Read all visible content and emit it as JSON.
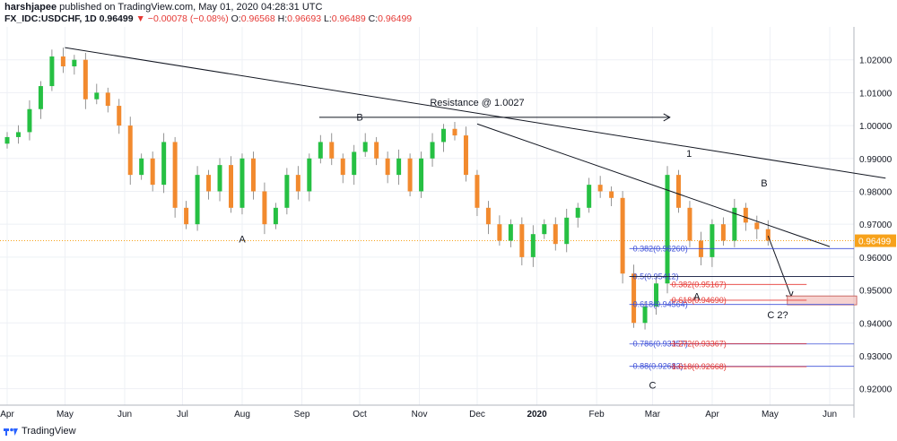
{
  "header": {
    "author": "harshjapee",
    "published": "published on TradingView.com, May 01, 2020 04:28:31 UTC",
    "symbol": "FX_IDC:USDCHF, 1D",
    "last": "0.96499",
    "change": "▼ −0.00078 (−0.08%)",
    "o_label": "O:",
    "o_val": "0.96568",
    "h_label": "H:",
    "h_val": "0.96693",
    "l_label": "L:",
    "l_val": "0.96489",
    "c_label": "C:",
    "c_val": "0.96499"
  },
  "footer": {
    "brand": "TradingView"
  },
  "colors": {
    "up": "#26c043",
    "down": "#f28a2e",
    "fib_blue": "#3f51d8",
    "fib_red": "#e53935",
    "line": "#131722",
    "grid": "#eef0f5",
    "price_tag": "#f7a21b"
  },
  "chart_data": {
    "type": "candlestick",
    "x_tick_labels": [
      "Apr",
      "May",
      "Jun",
      "Jul",
      "Aug",
      "Sep",
      "Oct",
      "Nov",
      "Dec",
      "2020",
      "Feb",
      "Mar",
      "Apr",
      "May",
      "Jun"
    ],
    "y_ticks": [
      0.92,
      0.93,
      0.94,
      0.95,
      0.96,
      0.97,
      0.98,
      0.99,
      1.0,
      1.01,
      1.02
    ],
    "y_tick_labels": [
      "0.92000",
      "0.93000",
      "0.94000",
      "0.95000",
      "0.96000",
      "0.97000",
      "0.98000",
      "0.99000",
      "1.00000",
      "1.01000",
      "1.02000"
    ],
    "ylim": [
      0.915,
      1.03
    ],
    "current_price": 0.96499,
    "current_price_label": "0.96499",
    "closes": [
      0.9965,
      0.998,
      1.005,
      1.012,
      1.021,
      1.018,
      1.02,
      1.008,
      1.01,
      1.006,
      1.0,
      0.985,
      0.99,
      0.982,
      0.995,
      0.975,
      0.97,
      0.985,
      0.98,
      0.988,
      0.975,
      0.99,
      0.98,
      0.97,
      0.975,
      0.985,
      0.98,
      0.99,
      0.995,
      0.99,
      0.985,
      0.992,
      0.995,
      0.99,
      0.985,
      0.99,
      0.98,
      0.99,
      0.995,
      0.999,
      0.997,
      0.985,
      0.975,
      0.97,
      0.965,
      0.97,
      0.96,
      0.967,
      0.97,
      0.964,
      0.972,
      0.975,
      0.982,
      0.98,
      0.978,
      0.955,
      0.94,
      0.945,
      0.952,
      0.985,
      0.975,
      0.965,
      0.96,
      0.97,
      0.965,
      0.975,
      0.9705,
      0.9685,
      0.965
    ],
    "annotations": [
      {
        "text": "B",
        "x": "2019-10-01",
        "y": 1.0015
      },
      {
        "text": "A",
        "x": "2019-08-01",
        "y": 0.9645
      },
      {
        "text": "Resistance @ 1.0027",
        "x": "2019-12-01",
        "y": 1.006
      },
      {
        "text": "1",
        "x": "2020-03-20",
        "y": 0.9905
      },
      {
        "text": "B",
        "x": "2020-04-28",
        "y": 0.9815
      },
      {
        "text": "A",
        "x": "2020-03-24",
        "y": 0.947
      },
      {
        "text": "C",
        "x": "2020-03-01",
        "y": 0.92
      },
      {
        "text": "C 2?",
        "x": "2020-05-05",
        "y": 0.9415
      }
    ],
    "fib_left": [
      {
        "level": "0.382",
        "value": "0.96260",
        "price": 0.9626
      },
      {
        "level": "0.5",
        "value": "0.95412",
        "price": 0.9541
      },
      {
        "level": "0.618",
        "value": "0.94564",
        "price": 0.9456
      },
      {
        "level": "0.786",
        "value": "0.93357",
        "price": 0.9336
      },
      {
        "level": "0.88",
        "value": "0.92683",
        "price": 0.9268
      }
    ],
    "fib_right": [
      {
        "level": "0.382",
        "value": "0.95167",
        "price": 0.9517
      },
      {
        "level": "0.618",
        "value": "0.94690",
        "price": 0.9469
      },
      {
        "level": "1.272",
        "value": "0.93367",
        "price": 0.9337
      },
      {
        "level": "1.618",
        "value": "0.92668",
        "price": 0.9267
      }
    ]
  }
}
